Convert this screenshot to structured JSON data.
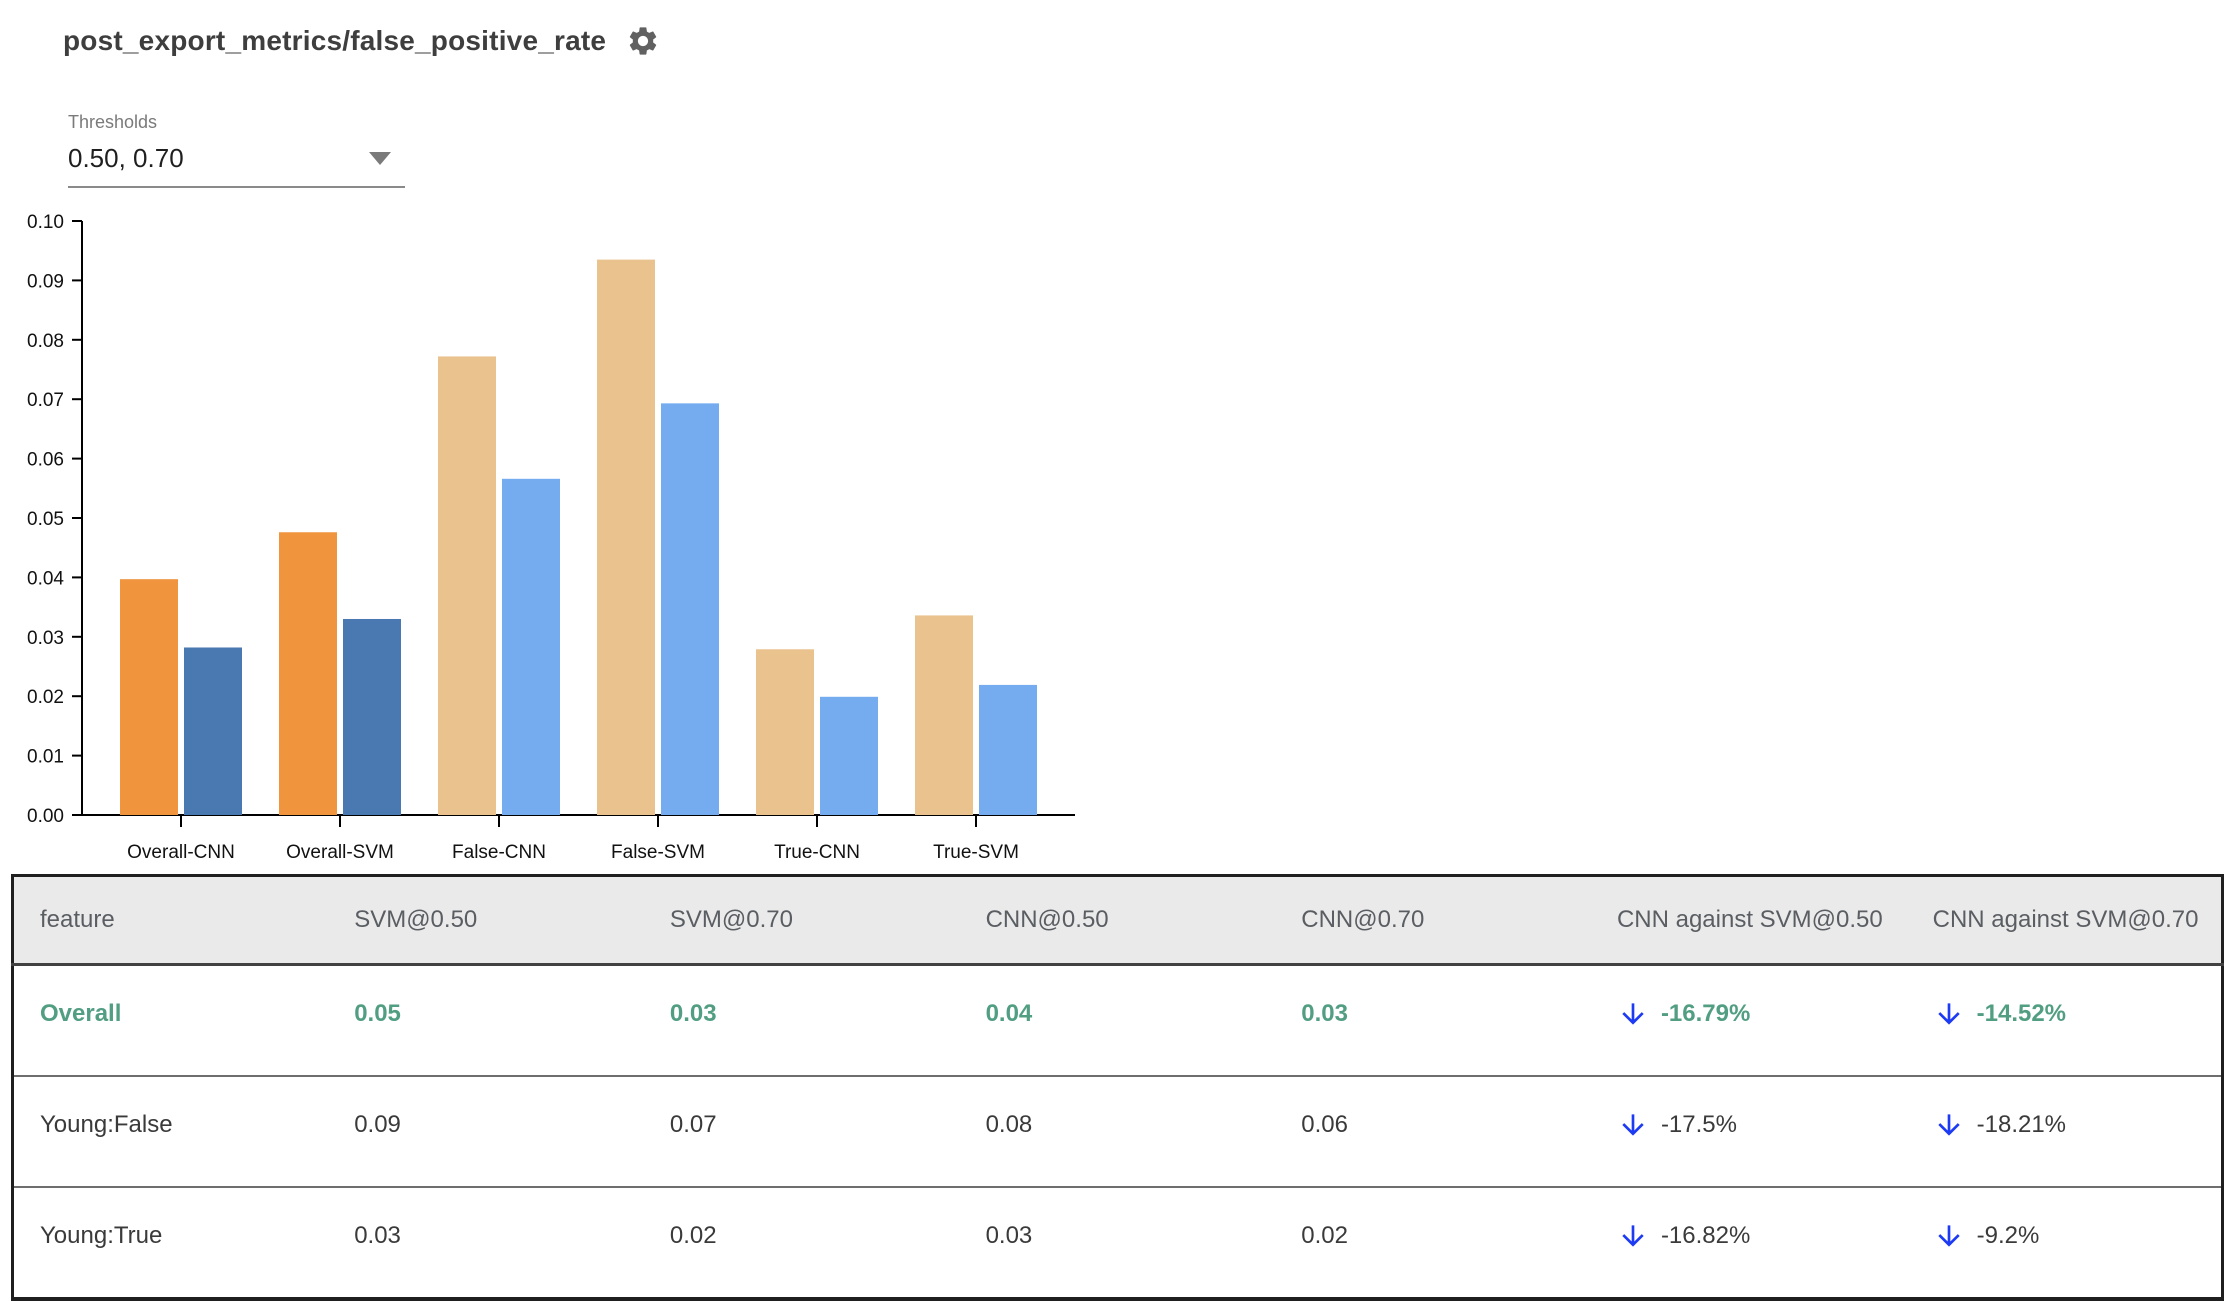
{
  "header": {
    "title": "post_export_metrics/false_positive_rate",
    "settings_icon": "gear-icon"
  },
  "controls": {
    "thresholds_label": "Thresholds",
    "thresholds_value": "0.50, 0.70",
    "dropdown_icon": "chevron-down-icon"
  },
  "chart_data": {
    "type": "bar",
    "title": "",
    "xlabel": "",
    "ylabel": "",
    "ylim": [
      0,
      0.1
    ],
    "ytick_step": 0.01,
    "ytick_labels": [
      "0.00",
      "0.01",
      "0.02",
      "0.03",
      "0.04",
      "0.05",
      "0.06",
      "0.07",
      "0.08",
      "0.09",
      "0.10"
    ],
    "grid": false,
    "legend": "none",
    "categories": [
      "Overall-CNN",
      "Overall-SVM",
      "False-CNN",
      "False-SVM",
      "True-CNN",
      "True-SVM"
    ],
    "series": [
      {
        "name": "threshold 0.50",
        "values": [
          0.0397,
          0.0476,
          0.0772,
          0.0935,
          0.0279,
          0.0336
        ]
      },
      {
        "name": "threshold 0.70",
        "values": [
          0.0282,
          0.033,
          0.0566,
          0.0693,
          0.0199,
          0.0219
        ]
      }
    ],
    "bar_colors": [
      [
        "#f0943e",
        "#4a78b0"
      ],
      [
        "#f0943e",
        "#4a78b0"
      ],
      [
        "#eac28e",
        "#75acf0"
      ],
      [
        "#eac28e",
        "#75acf0"
      ],
      [
        "#eac28e",
        "#75acf0"
      ],
      [
        "#eac28e",
        "#75acf0"
      ]
    ]
  },
  "table": {
    "columns": [
      "feature",
      "SVM@0.50",
      "SVM@0.70",
      "CNN@0.50",
      "CNN@0.70",
      "CNN against SVM@0.50",
      "CNN against SVM@0.70"
    ],
    "rows": [
      {
        "feature": "Overall",
        "values": [
          "0.05",
          "0.03",
          "0.04",
          "0.03"
        ],
        "deltas": [
          "-16.79%",
          "-14.52%"
        ],
        "highlight": true
      },
      {
        "feature": "Young:False",
        "values": [
          "0.09",
          "0.07",
          "0.08",
          "0.06"
        ],
        "deltas": [
          "-17.5%",
          "-18.21%"
        ],
        "highlight": false
      },
      {
        "feature": "Young:True",
        "values": [
          "0.03",
          "0.02",
          "0.03",
          "0.02"
        ],
        "deltas": [
          "-16.82%",
          "-9.2%"
        ],
        "highlight": false
      }
    ]
  },
  "colors": {
    "highlight_green": "#519e82",
    "arrow_blue": "#1d3bf3",
    "header_bg": "#eaeaea",
    "axis_black": "#000000",
    "title_gray": "#3e3e3e",
    "label_gray": "#7a7a7a"
  }
}
